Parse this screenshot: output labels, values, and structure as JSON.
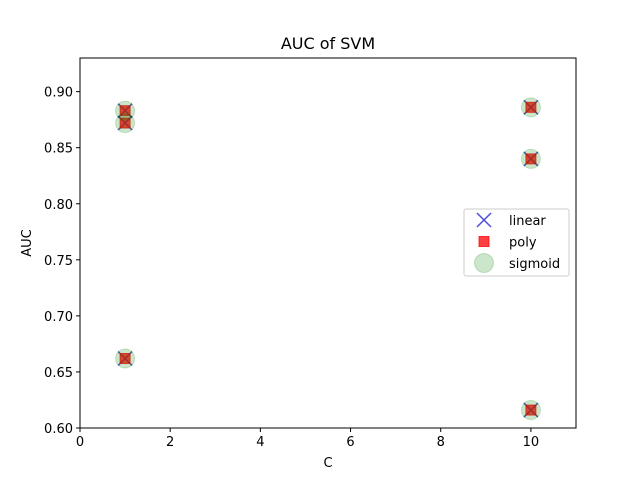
{
  "chart_data": {
    "type": "scatter",
    "title": "AUC of SVM",
    "xlabel": "C",
    "ylabel": "AUC",
    "xlim": [
      0,
      11
    ],
    "ylim": [
      0.6,
      0.93
    ],
    "xticks": [
      0,
      2,
      4,
      6,
      8,
      10
    ],
    "yticks": [
      0.6,
      0.65,
      0.7,
      0.75,
      0.8,
      0.85,
      0.9
    ],
    "grid": false,
    "legend_position": "center-right",
    "series": [
      {
        "name": "linear",
        "marker": "x",
        "color": "#0000cc",
        "points": [
          [
            1,
            0.883
          ],
          [
            1,
            0.872
          ],
          [
            1,
            0.662
          ],
          [
            10,
            0.886
          ],
          [
            10,
            0.84
          ],
          [
            10,
            0.616
          ]
        ]
      },
      {
        "name": "poly",
        "marker": "square",
        "color": "#ff0000",
        "points": [
          [
            1,
            0.883
          ],
          [
            1,
            0.872
          ],
          [
            1,
            0.662
          ],
          [
            10,
            0.886
          ],
          [
            10,
            0.84
          ],
          [
            10,
            0.616
          ]
        ]
      },
      {
        "name": "sigmoid",
        "marker": "circle",
        "color": "#008000",
        "points": [
          [
            1,
            0.883
          ],
          [
            1,
            0.872
          ],
          [
            1,
            0.662
          ],
          [
            10,
            0.886
          ],
          [
            10,
            0.84
          ],
          [
            10,
            0.616
          ]
        ]
      }
    ]
  }
}
